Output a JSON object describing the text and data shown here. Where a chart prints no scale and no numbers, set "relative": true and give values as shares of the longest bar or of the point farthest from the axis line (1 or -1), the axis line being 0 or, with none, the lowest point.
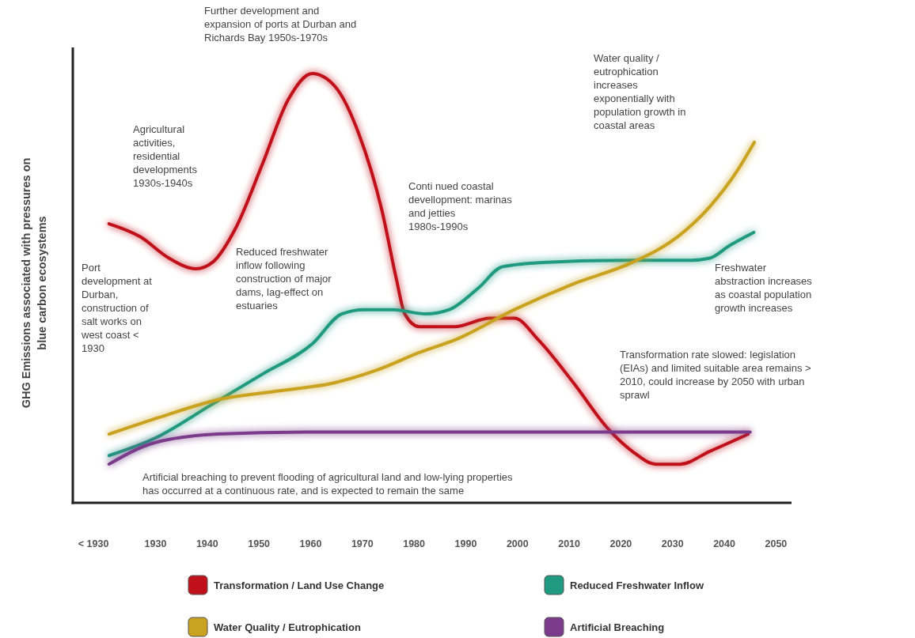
{
  "chart_data": {
    "type": "line",
    "relative": true,
    "ylabel": "GHG Emissions associated with pressures on\nblue carbon ecosystems",
    "xlim": [
      1914,
      2053
    ],
    "xticks": [
      {
        "value": 1918,
        "label": "< 1930"
      },
      1930,
      1940,
      1950,
      1960,
      1970,
      1980,
      1990,
      2000,
      2010,
      2020,
      2030,
      2040,
      2050
    ],
    "legend": "bottom",
    "grid": false,
    "line_style": "solid",
    "marker": "none",
    "series": [
      {
        "name": "Transformation / Land Use Change",
        "color": "#c0101a",
        "x": [
          1921,
          1927,
          1932.6,
          1937.8,
          1941,
          1945.5,
          1950.7,
          1955.7,
          1960.3,
          1964.7,
          1969.3,
          1973.8,
          1976.6,
          1978.2,
          1981,
          1987.8,
          1994.7,
          1999.4,
          2004,
          2010.8,
          2017.7,
          2022.2,
          2026.8,
          2031.4,
          2037.2,
          2044.6
        ],
        "values": [
          0.65,
          0.62,
          0.57,
          0.545,
          0.56,
          0.64,
          0.79,
          0.94,
          1,
          0.97,
          0.86,
          0.68,
          0.52,
          0.44,
          0.41,
          0.41,
          0.43,
          0.43,
          0.38,
          0.28,
          0.17,
          0.12,
          0.09,
          0.09,
          0.12,
          0.16
        ]
      },
      {
        "name": "Reduced Freshwater Inflow",
        "color": "#1f9a80",
        "x": [
          1921,
          1929.8,
          1941,
          1950.7,
          1960.3,
          1966,
          1970.3,
          1976,
          1982.2,
          1986.8,
          1992.4,
          1997.1,
          2005,
          2022.2,
          2033.6,
          2037.2,
          2041.1,
          2045.7
        ],
        "values": [
          0.11,
          0.15,
          0.23,
          0.3,
          0.37,
          0.44,
          0.45,
          0.45,
          0.44,
          0.45,
          0.5,
          0.55,
          0.56,
          0.565,
          0.565,
          0.57,
          0.6,
          0.63
        ]
      },
      {
        "name": "Water Quality / Eutrophication",
        "color": "#c9a21f",
        "x": [
          1921,
          1931,
          1942,
          1953.4,
          1964.7,
          1973,
          1981,
          1988,
          1999.4,
          2010.8,
          2022.2,
          2031,
          2037.2,
          2042.3,
          2045.8
        ],
        "values": [
          0.16,
          0.2,
          0.24,
          0.26,
          0.28,
          0.31,
          0.35,
          0.38,
          0.45,
          0.51,
          0.56,
          0.62,
          0.69,
          0.77,
          0.84
        ]
      },
      {
        "name": "Artificial Breaching",
        "color": "#7b3a8a",
        "x": [
          1921,
          1929.8,
          1942,
          1959,
          1980,
          2000,
          2020,
          2045
        ],
        "values": [
          0.09,
          0.14,
          0.16,
          0.165,
          0.165,
          0.165,
          0.165,
          0.165
        ]
      }
    ],
    "annotations": [
      "Further development and\nexpansion of ports at Durban and\nRichards Bay 1950s-1970s",
      "Agricultural\nactivities,\nresidential\ndevelopments\n1930s-1940s",
      "Port\ndevelopment at\nDurban,\nconstruction of\nsalt works on\nwest coast <\n1930",
      "Reduced freshwater\ninflow following\nconstruction of major\ndams, lag-effect on\nestuaries",
      "Conti nued coastal\ndevellopment: marinas\nand jetties\n1980s-1990s",
      "Water quality /\neutrophication\nincreases\nexponentially with\npopulation growth in\ncoastal areas",
      "Freshwater\nabstraction increases\nas coastal population\ngrowth increases",
      "Transformation rate slowed: legislation\n(EIAs) and limited suitable area remains >\n2010, could increase by 2050 with urban\nsprawl",
      "Artificial breaching to prevent flooding of agricultural land and low-lying properties\nhas occurred at a continuous rate, and is expected to remain the same"
    ]
  }
}
